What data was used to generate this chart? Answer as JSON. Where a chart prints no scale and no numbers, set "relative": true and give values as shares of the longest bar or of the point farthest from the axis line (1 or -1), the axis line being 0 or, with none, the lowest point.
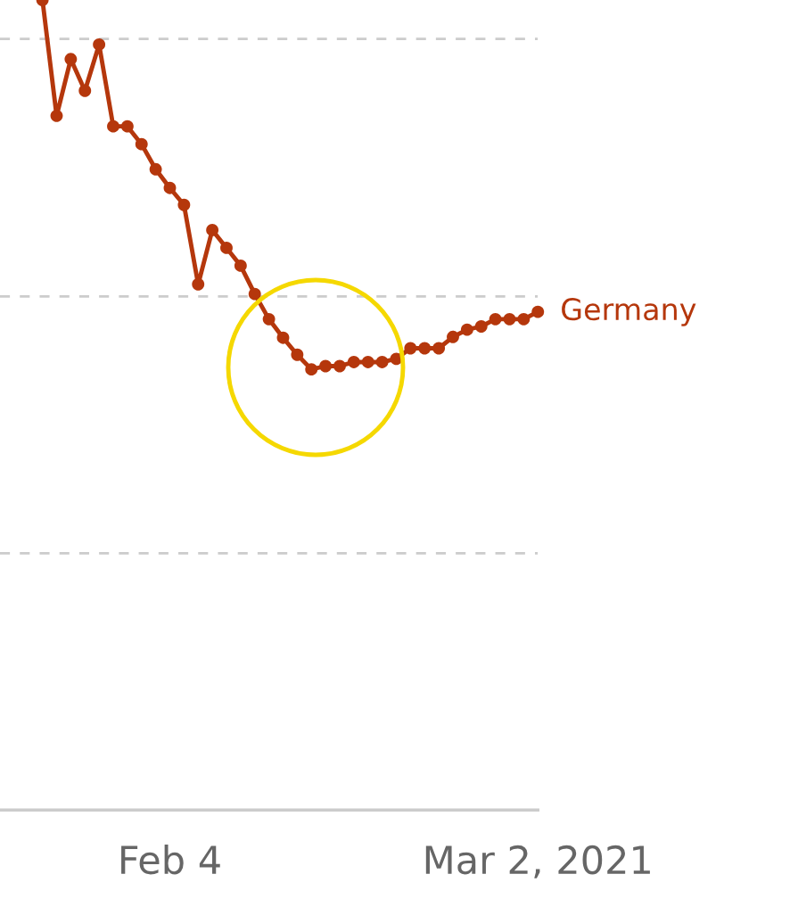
{
  "chart_data": {
    "type": "line",
    "relative": true,
    "x": [
      "2021-01-26",
      "2021-01-27",
      "2021-01-28",
      "2021-01-29",
      "2021-01-30",
      "2021-01-31",
      "2021-02-01",
      "2021-02-02",
      "2021-02-03",
      "2021-02-04",
      "2021-02-05",
      "2021-02-06",
      "2021-02-07",
      "2021-02-08",
      "2021-02-09",
      "2021-02-10",
      "2021-02-11",
      "2021-02-12",
      "2021-02-13",
      "2021-02-14",
      "2021-02-15",
      "2021-02-16",
      "2021-02-17",
      "2021-02-18",
      "2021-02-19",
      "2021-02-20",
      "2021-02-21",
      "2021-02-22",
      "2021-02-23",
      "2021-02-24",
      "2021-02-25",
      "2021-02-26",
      "2021-02-27",
      "2021-02-28",
      "2021-03-01",
      "2021-03-02"
    ],
    "series": [
      {
        "name": "Germany",
        "color": "#b5370c",
        "values": [
          1.0,
          0.857,
          0.927,
          0.888,
          0.945,
          0.844,
          0.844,
          0.822,
          0.791,
          0.768,
          0.747,
          0.649,
          0.716,
          0.694,
          0.672,
          0.637,
          0.606,
          0.583,
          0.562,
          0.544,
          0.548,
          0.548,
          0.553,
          0.553,
          0.553,
          0.557,
          0.57,
          0.57,
          0.57,
          0.584,
          0.593,
          0.597,
          0.606,
          0.606,
          0.606,
          0.615
        ]
      }
    ],
    "xlim": [
      "2021-01-23",
      "2021-03-02"
    ],
    "xticks": [
      {
        "value": "2021-02-04",
        "label": "Feb 4"
      },
      {
        "value": "2021-03-02",
        "label": "Mar 2, 2021"
      }
    ],
    "grid": "y",
    "marker": "circle",
    "line_style": "solid",
    "legend": false,
    "tick_labels": "x"
  }
}
